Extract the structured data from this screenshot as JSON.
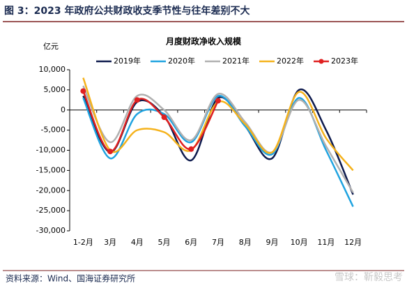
{
  "header": "图 3：2023 年政府公共财政收支季节性与往年差别不大",
  "source": "资料来源：Wind、国海证券研究所",
  "watermark": "雪球：靳毅思考",
  "chart_data": {
    "type": "line",
    "title": "月度财政净收入规模",
    "y_label": "亿元",
    "categories": [
      "1-2月",
      "3月",
      "4月",
      "5月",
      "6月",
      "7月",
      "8月",
      "9月",
      "10月",
      "11月",
      "12月"
    ],
    "series": [
      {
        "name": "2019年",
        "color": "#0d1a4d",
        "values": [
          3500,
          -10500,
          2000,
          -1500,
          -12500,
          3000,
          -4000,
          -12000,
          5000,
          -5000,
          -21000
        ]
      },
      {
        "name": "2020年",
        "color": "#1fa3e0",
        "values": [
          3000,
          -12000,
          -1000,
          -1000,
          -8000,
          3500,
          -4000,
          -11000,
          3000,
          -10000,
          -24000
        ]
      },
      {
        "name": "2021年",
        "color": "#b0b0b0",
        "values": [
          6000,
          -8000,
          3500,
          0,
          -7500,
          4000,
          -3000,
          -10500,
          2500,
          -9000,
          -20500
        ]
      },
      {
        "name": "2022年",
        "color": "#f5b21b",
        "values": [
          8000,
          -10000,
          -5000,
          -5500,
          -10000,
          2000,
          -3500,
          -10500,
          4500,
          -7000,
          -15000
        ]
      },
      {
        "name": "2023年",
        "color": "#e02020",
        "markers": true,
        "values": [
          4700,
          -10300,
          2500,
          -1800,
          -9700,
          2300,
          null,
          null,
          null,
          null,
          null
        ]
      }
    ],
    "ylim": [
      -30000,
      10000
    ],
    "yticks": [
      {
        "value": -30000,
        "label": "-30,000"
      },
      {
        "value": -25000,
        "label": "-25,000"
      },
      {
        "value": -20000,
        "label": "-20,000"
      },
      {
        "value": -15000,
        "label": "-15,000"
      },
      {
        "value": -10000,
        "label": "-10,000"
      },
      {
        "value": -5000,
        "label": "-5,000"
      },
      0,
      {
        "value": 5000,
        "label": "5,000"
      },
      {
        "value": 10000,
        "label": "10,000"
      }
    ]
  }
}
